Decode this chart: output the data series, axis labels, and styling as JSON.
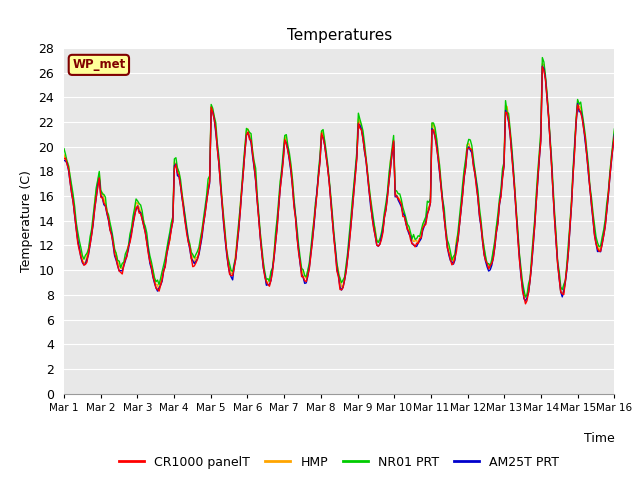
{
  "title": "Temperatures",
  "xlabel": "Time",
  "ylabel": "Temperature (C)",
  "ylim": [
    0,
    28
  ],
  "yticks": [
    0,
    2,
    4,
    6,
    8,
    10,
    12,
    14,
    16,
    18,
    20,
    22,
    24,
    26,
    28
  ],
  "xtick_labels": [
    "Mar 1",
    "Mar 2",
    "Mar 3",
    "Mar 4",
    "Mar 5",
    "Mar 6",
    "Mar 7",
    "Mar 8",
    "Mar 9",
    "Mar 10",
    "Mar 11",
    "Mar 12",
    "Mar 13",
    "Mar 14",
    "Mar 15",
    "Mar 16"
  ],
  "background_color": "#e8e8e8",
  "figure_color": "#ffffff",
  "legend_labels": [
    "CR1000 panelT",
    "HMP",
    "NR01 PRT",
    "AM25T PRT"
  ],
  "legend_colors": [
    "#ff0000",
    "#ffa500",
    "#00cc00",
    "#0000cc"
  ],
  "wp_met_label": "WP_met",
  "wp_met_bg": "#ffff99",
  "wp_met_border": "#800000",
  "wp_met_text_color": "#800000",
  "n_points": 360,
  "days": 15,
  "daily_highs": [
    19.0,
    16.0,
    15.0,
    18.5,
    23.0,
    21.0,
    20.5,
    21.0,
    22.0,
    16.0,
    21.5,
    20.0,
    23.0,
    26.5,
    23.0
  ],
  "daily_lows": [
    10.5,
    10.0,
    8.5,
    10.5,
    9.5,
    8.7,
    9.0,
    8.5,
    12.0,
    12.0,
    10.5,
    10.0,
    7.5,
    8.0,
    11.5
  ]
}
